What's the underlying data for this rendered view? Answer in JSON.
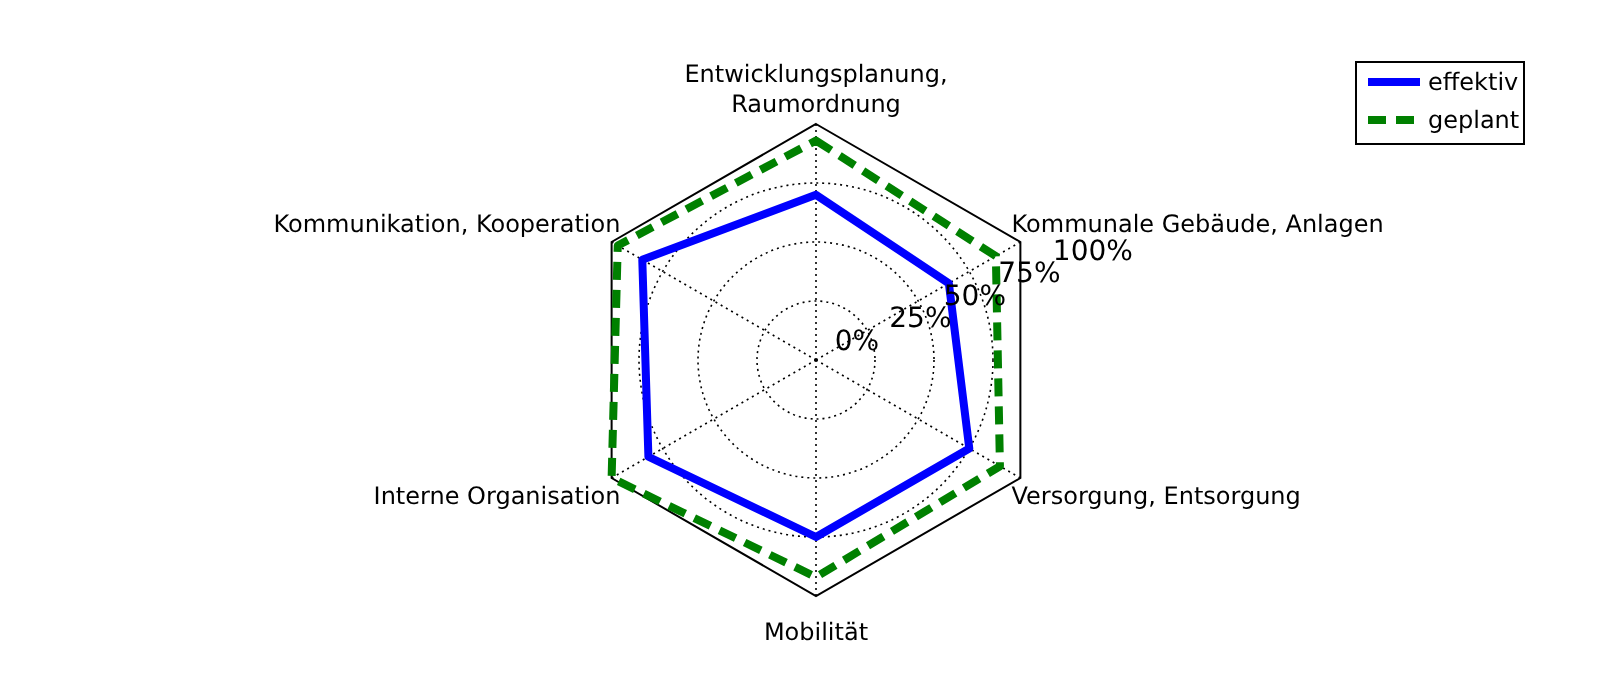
{
  "chart_data": {
    "type": "radar",
    "categories": [
      "Entwicklungsplanung,\nRaumordnung",
      "Kommunale Gebäude, Anlagen",
      "Versorgung, Entsorgung",
      "Mobilität",
      "Interne Organisation",
      "Kommunikation, Kooperation"
    ],
    "series": [
      {
        "name": "effektiv",
        "color": "#0000ff",
        "line_style": "solid",
        "values": [
          70,
          65,
          75,
          75,
          82,
          85
        ]
      },
      {
        "name": "geplant",
        "color": "#008000",
        "line_style": "dashed",
        "values": [
          93,
          88,
          90,
          92,
          100,
          97
        ]
      }
    ],
    "ylim": [
      0,
      100
    ],
    "yticks": [
      {
        "value": 0,
        "label": "0%"
      },
      {
        "value": 25,
        "label": "25%"
      },
      {
        "value": 50,
        "label": "50%"
      },
      {
        "value": 75,
        "label": "75%"
      },
      {
        "value": 100,
        "label": "100%"
      }
    ],
    "grid": true,
    "legend": "top right",
    "marker": "none"
  }
}
